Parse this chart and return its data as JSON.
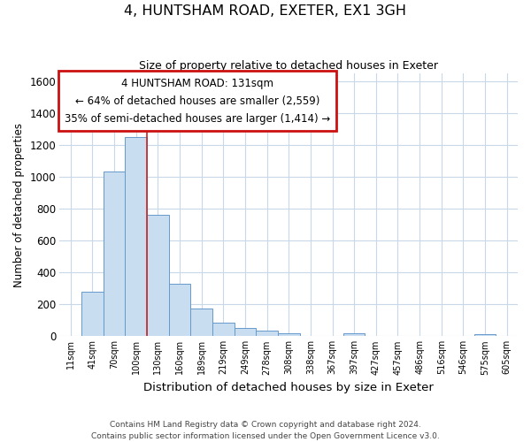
{
  "title": "4, HUNTSHAM ROAD, EXETER, EX1 3GH",
  "subtitle": "Size of property relative to detached houses in Exeter",
  "xlabel": "Distribution of detached houses by size in Exeter",
  "ylabel": "Number of detached properties",
  "bar_color": "#c8ddf0",
  "bar_edge_color": "#6699cc",
  "bin_labels": [
    "11sqm",
    "41sqm",
    "70sqm",
    "100sqm",
    "130sqm",
    "160sqm",
    "189sqm",
    "219sqm",
    "249sqm",
    "278sqm",
    "308sqm",
    "338sqm",
    "367sqm",
    "397sqm",
    "427sqm",
    "457sqm",
    "486sqm",
    "516sqm",
    "546sqm",
    "575sqm",
    "605sqm"
  ],
  "bar_heights": [
    0,
    280,
    1035,
    1250,
    760,
    330,
    175,
    85,
    50,
    35,
    18,
    0,
    0,
    15,
    0,
    0,
    0,
    0,
    0,
    10,
    0
  ],
  "ylim": [
    0,
    1650
  ],
  "yticks": [
    0,
    200,
    400,
    600,
    800,
    1000,
    1200,
    1400,
    1600
  ],
  "vline_x": 4.0,
  "vline_color": "#cc2222",
  "annotation_line1": "4 HUNTSHAM ROAD: 131sqm",
  "annotation_line2": "← 64% of detached houses are smaller (2,559)",
  "annotation_line3": "35% of semi-detached houses are larger (1,414) →",
  "footer1": "Contains HM Land Registry data © Crown copyright and database right 2024.",
  "footer2": "Contains public sector information licensed under the Open Government Licence v3.0.",
  "background_color": "#ffffff",
  "plot_bg_color": "#ffffff",
  "grid_color": "#c8d8e8",
  "ann_box_color": "#cc1111"
}
